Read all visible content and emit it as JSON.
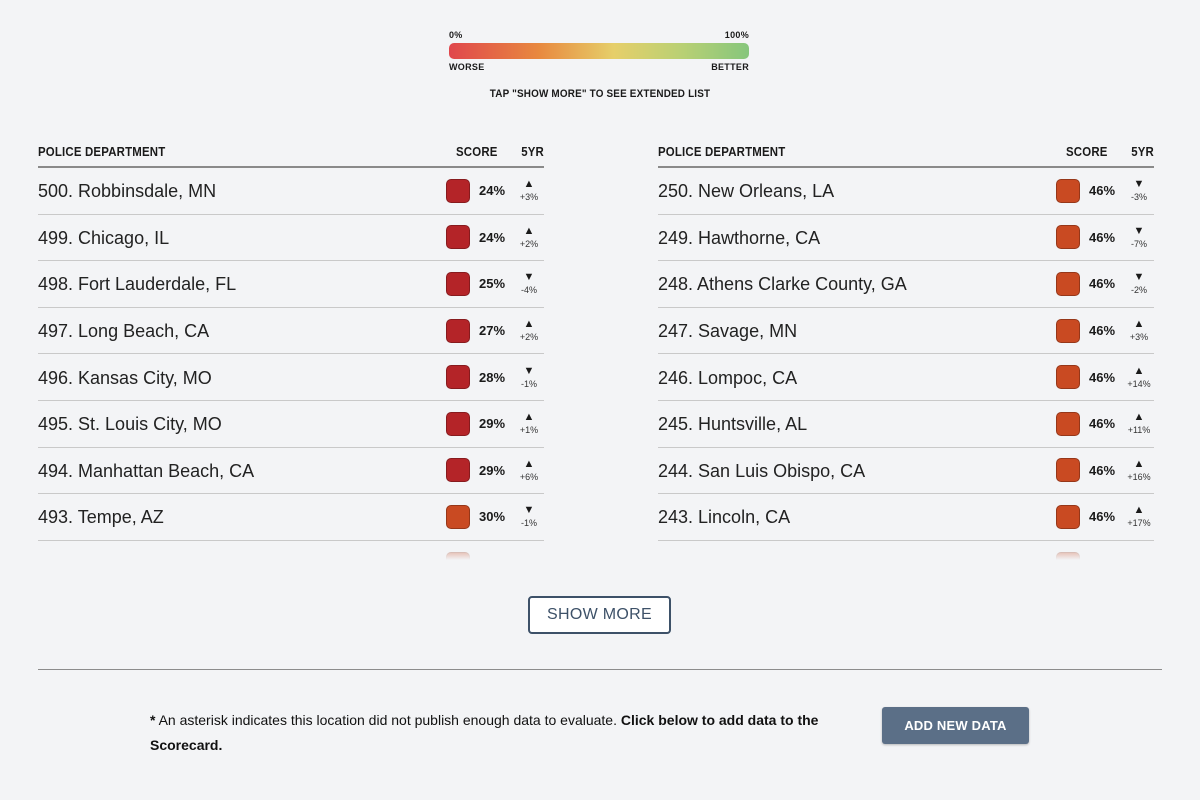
{
  "legend": {
    "min_label": "0%",
    "max_label": "100%",
    "worse_label": "WORSE",
    "better_label": "BETTER",
    "note": "TAP \"SHOW MORE\" TO SEE EXTENDED LIST",
    "gradient_colors": [
      "#e0474c",
      "#e8893f",
      "#e6cf6a",
      "#b8d074",
      "#86c67c"
    ]
  },
  "colors": {
    "red_score": "#b42428",
    "orange_score": "#c94a22",
    "button_border": "#3d5168",
    "add_button_bg": "#5b6f87"
  },
  "headers": {
    "department": "POLICE DEPARTMENT",
    "score": "SCORE",
    "five_year": "5YR"
  },
  "left_table": [
    {
      "name": "500. Robbinsdale, MN",
      "score": "24%",
      "trend": "up",
      "change": "+3%",
      "color": "#b42428"
    },
    {
      "name": "499. Chicago, IL",
      "score": "24%",
      "trend": "up",
      "change": "+2%",
      "color": "#b42428"
    },
    {
      "name": "498. Fort Lauderdale, FL",
      "score": "25%",
      "trend": "down",
      "change": "-4%",
      "color": "#b42428"
    },
    {
      "name": "497. Long Beach, CA",
      "score": "27%",
      "trend": "up",
      "change": "+2%",
      "color": "#b42428"
    },
    {
      "name": "496. Kansas City, MO",
      "score": "28%",
      "trend": "down",
      "change": "-1%",
      "color": "#b42428"
    },
    {
      "name": "495. St. Louis City, MO",
      "score": "29%",
      "trend": "up",
      "change": "+1%",
      "color": "#b42428"
    },
    {
      "name": "494. Manhattan Beach, CA",
      "score": "29%",
      "trend": "up",
      "change": "+6%",
      "color": "#b42428"
    },
    {
      "name": "493. Tempe, AZ",
      "score": "30%",
      "trend": "down",
      "change": "-1%",
      "color": "#c94a22"
    }
  ],
  "right_table": [
    {
      "name": "250. New Orleans, LA",
      "score": "46%",
      "trend": "down",
      "change": "-3%",
      "color": "#c94a22"
    },
    {
      "name": "249. Hawthorne, CA",
      "score": "46%",
      "trend": "down",
      "change": "-7%",
      "color": "#c94a22"
    },
    {
      "name": "248. Athens Clarke County, GA",
      "score": "46%",
      "trend": "down",
      "change": "-2%",
      "color": "#c94a22"
    },
    {
      "name": "247. Savage, MN",
      "score": "46%",
      "trend": "up",
      "change": "+3%",
      "color": "#c94a22"
    },
    {
      "name": "246. Lompoc, CA",
      "score": "46%",
      "trend": "up",
      "change": "+14%",
      "color": "#c94a22"
    },
    {
      "name": "245. Huntsville, AL",
      "score": "46%",
      "trend": "up",
      "change": "+11%",
      "color": "#c94a22"
    },
    {
      "name": "244. San Luis Obispo, CA",
      "score": "46%",
      "trend": "up",
      "change": "+16%",
      "color": "#c94a22"
    },
    {
      "name": "243. Lincoln, CA",
      "score": "46%",
      "trend": "up",
      "change": "+17%",
      "color": "#c94a22"
    }
  ],
  "left_partial": {
    "trend": "up",
    "color": "#c94a22"
  },
  "right_partial": {
    "trend": "up",
    "color": "#c94a22"
  },
  "show_more_label": "SHOW MORE",
  "footnote": {
    "asterisk": "*",
    "plain": " An asterisk indicates this location did not publish enough data to evaluate. ",
    "bold": "Click below to add data to the Scorecard."
  },
  "add_data_label": "ADD NEW DATA"
}
